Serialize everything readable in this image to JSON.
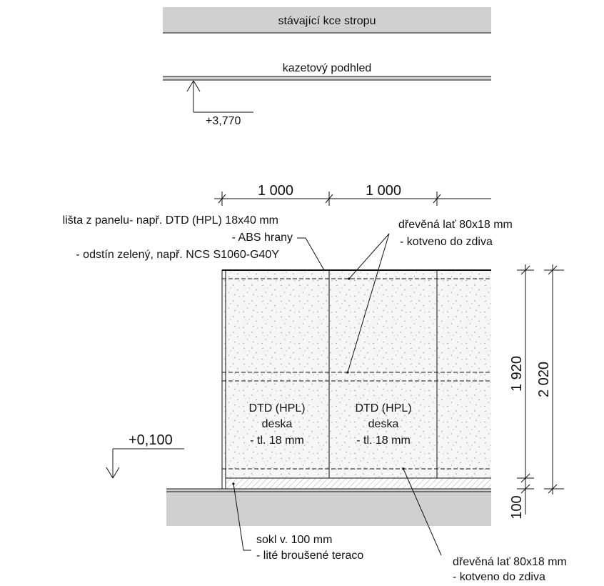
{
  "ceiling": {
    "existing_label": "stávající kce stropu",
    "cassette_label": "kazetový podhled",
    "level": "+3,770"
  },
  "floor": {
    "level": "+0,100"
  },
  "dimensions": {
    "width_1": "1 000",
    "width_2": "1 000",
    "height_panel": "1 920",
    "height_total": "2 020",
    "height_plinth": "100"
  },
  "labels": {
    "strip_line1": "lišta z panelu- např. DTD (HPL) 18x40 mm",
    "strip_line2": "- ABS hrany",
    "strip_line3": "- odstín zelený, např. NCS S1060-G40Y",
    "batten_top_line1": "dřevěná lať 80x18 mm",
    "batten_top_line2": "- kotveno do zdiva",
    "panel_left": [
      "DTD (HPL)",
      "deska",
      "- tl. 18 mm"
    ],
    "panel_right": [
      "DTD (HPL)",
      "deska",
      "- tl. 18 mm"
    ],
    "plinth_line1": "sokl v. 100 mm",
    "plinth_line2": "- lité broušené teraco",
    "batten_bottom_line1": "dřevěná lať 80x18 mm",
    "batten_bottom_line2": "- kotveno do zdiva"
  },
  "colors": {
    "slab_fill": "#d0d0d0",
    "panel_fill": "#f4f4f4",
    "line": "#111111"
  }
}
